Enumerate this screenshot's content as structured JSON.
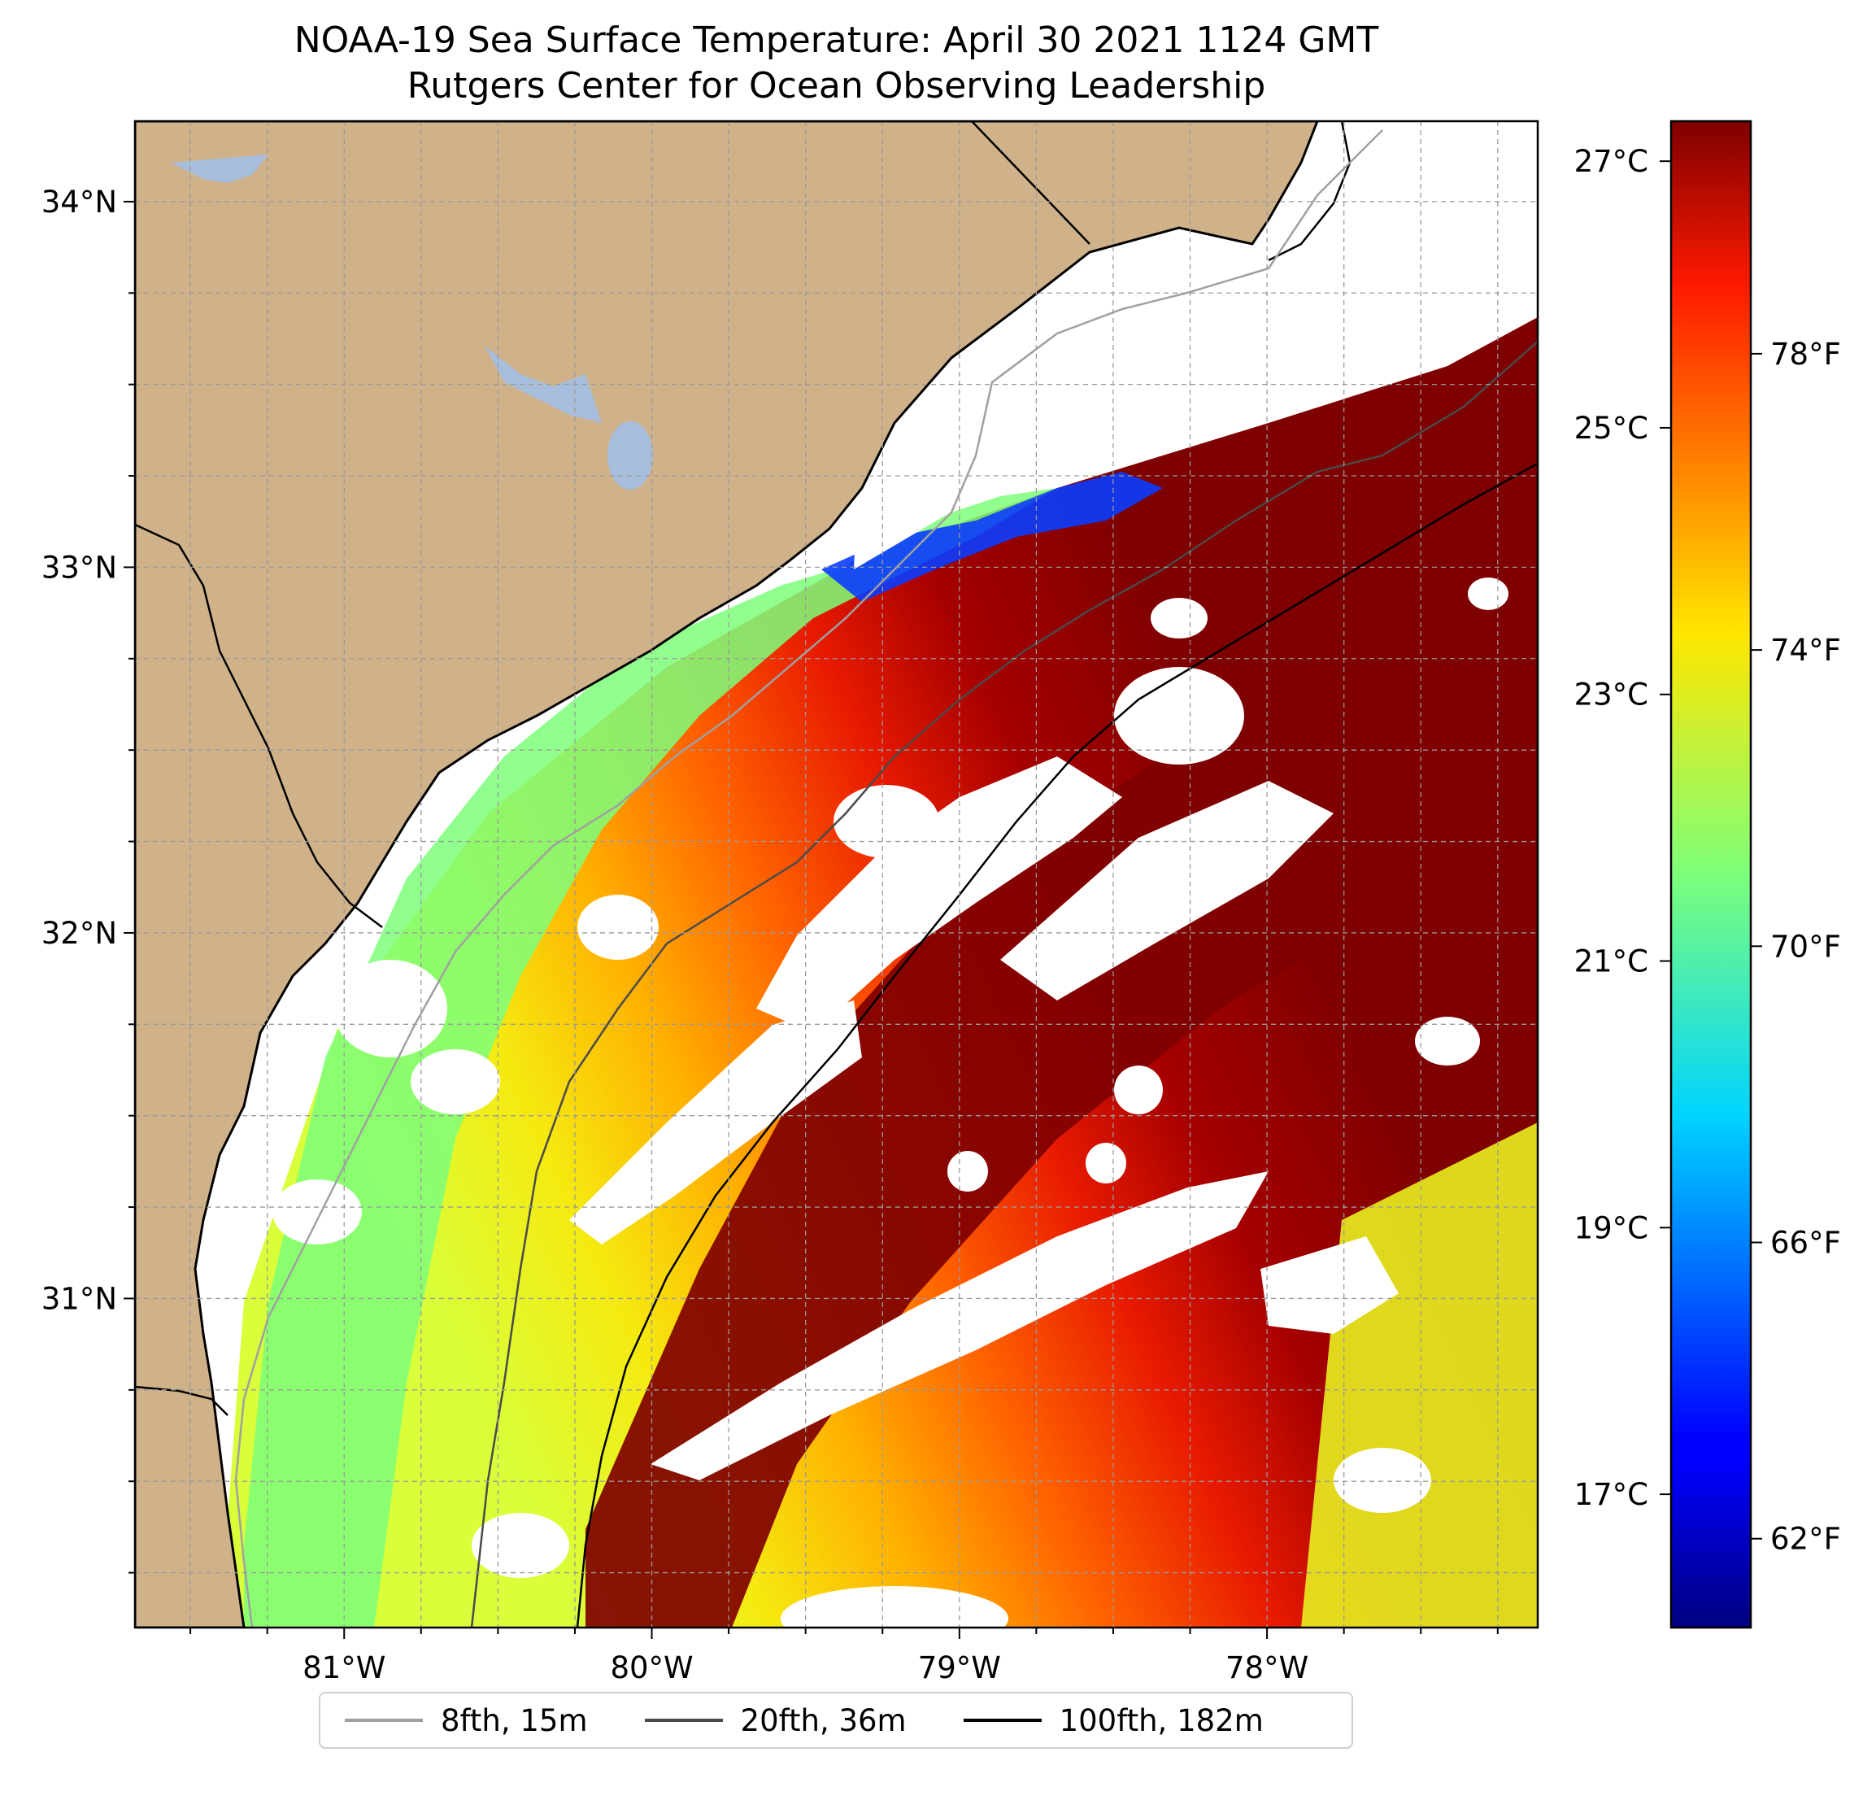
{
  "title": {
    "line1": "NOAA-19 Sea Surface Temperature: April 30 2021 1124 GMT",
    "line2": "Rutgers Center for Ocean Observing Leadership"
  },
  "map": {
    "lon_range": [
      -81.68,
      -77.12
    ],
    "lat_range": [
      30.1,
      34.22
    ],
    "lon_ticks": [
      {
        "value": -81,
        "label": "81°W"
      },
      {
        "value": -80,
        "label": "80°W"
      },
      {
        "value": -79,
        "label": "79°W"
      },
      {
        "value": -78,
        "label": "78°W"
      }
    ],
    "lat_ticks": [
      {
        "value": 34,
        "label": "34°N"
      },
      {
        "value": 33,
        "label": "33°N"
      },
      {
        "value": 32,
        "label": "32°N"
      },
      {
        "value": 31,
        "label": "31°N"
      }
    ],
    "gridlines": "dashed, every 0.25°",
    "land_color": "#cfb28a",
    "water_color": "#a6bddb",
    "cloud_color": "#ffffff"
  },
  "colorbar": {
    "colormap": "jet",
    "celsius_ticks": [
      "27°C",
      "25°C",
      "23°C",
      "21°C",
      "19°C",
      "17°C"
    ],
    "fahrenheit_ticks": [
      "78°F",
      "74°F",
      "70°F",
      "66°F",
      "62°F"
    ],
    "celsius_values": [
      27,
      25,
      23,
      21,
      19,
      17
    ],
    "fahrenheit_values": [
      78,
      74,
      70,
      66,
      62
    ],
    "range_c": [
      16.0,
      27.3
    ]
  },
  "legend": {
    "items": [
      {
        "label": "8fth, 15m",
        "color": "#a0a0a0"
      },
      {
        "label": "20fth, 36m",
        "color": "#4a4a4a"
      },
      {
        "label": "100fth, 182m",
        "color": "#000000"
      }
    ]
  }
}
